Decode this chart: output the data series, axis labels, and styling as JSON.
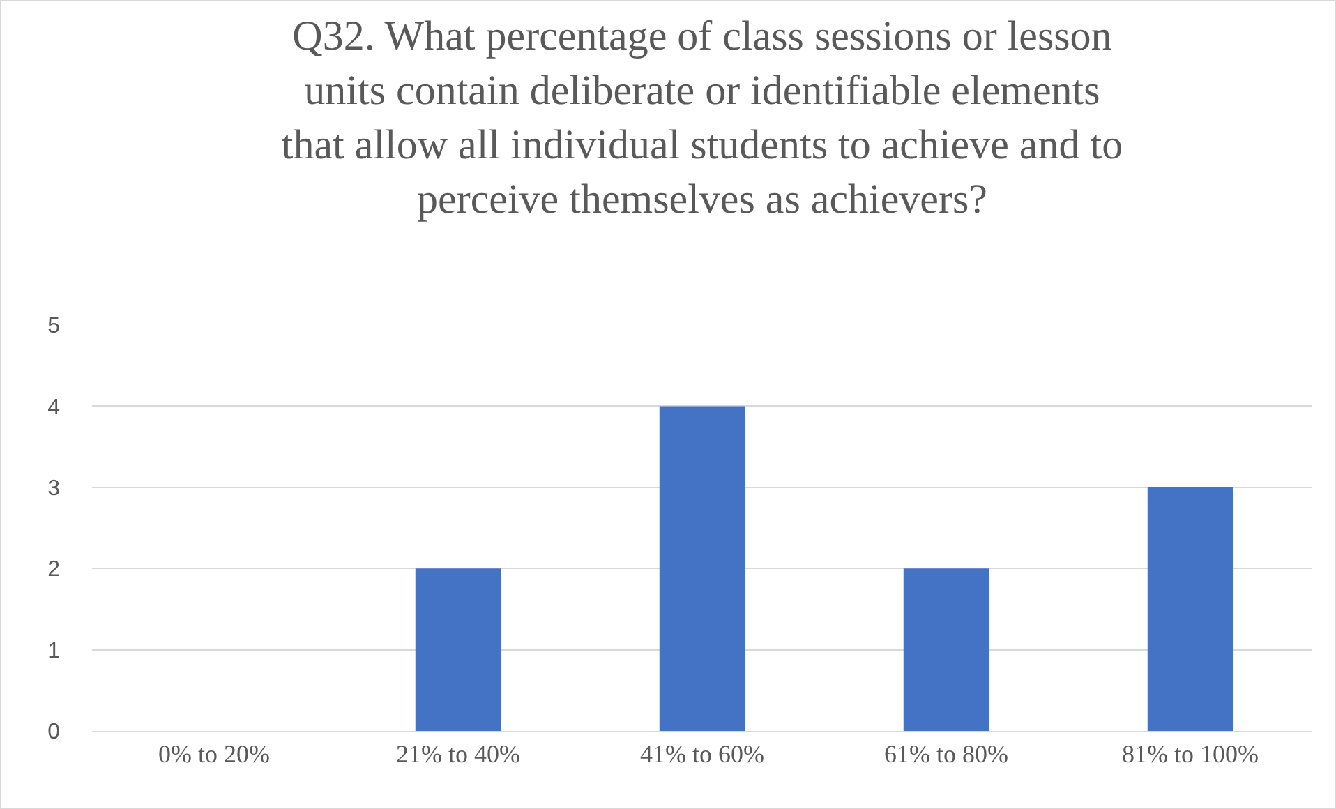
{
  "chart_data": {
    "type": "bar",
    "title": "Q32. What percentage of class sessions or lesson units contain deliberate or identifiable elements that allow all individual students to achieve and to perceive themselves as achievers?",
    "categories": [
      "0% to 20%",
      "21% to 40%",
      "41% to 60%",
      "61% to 80%",
      "81% to 100%"
    ],
    "values": [
      0,
      2,
      4,
      2,
      3
    ],
    "color": "#4472c4",
    "ylim": [
      0,
      5
    ],
    "yticks": [
      0,
      1,
      2,
      3,
      4,
      5
    ],
    "grid": "y",
    "legend": false
  }
}
